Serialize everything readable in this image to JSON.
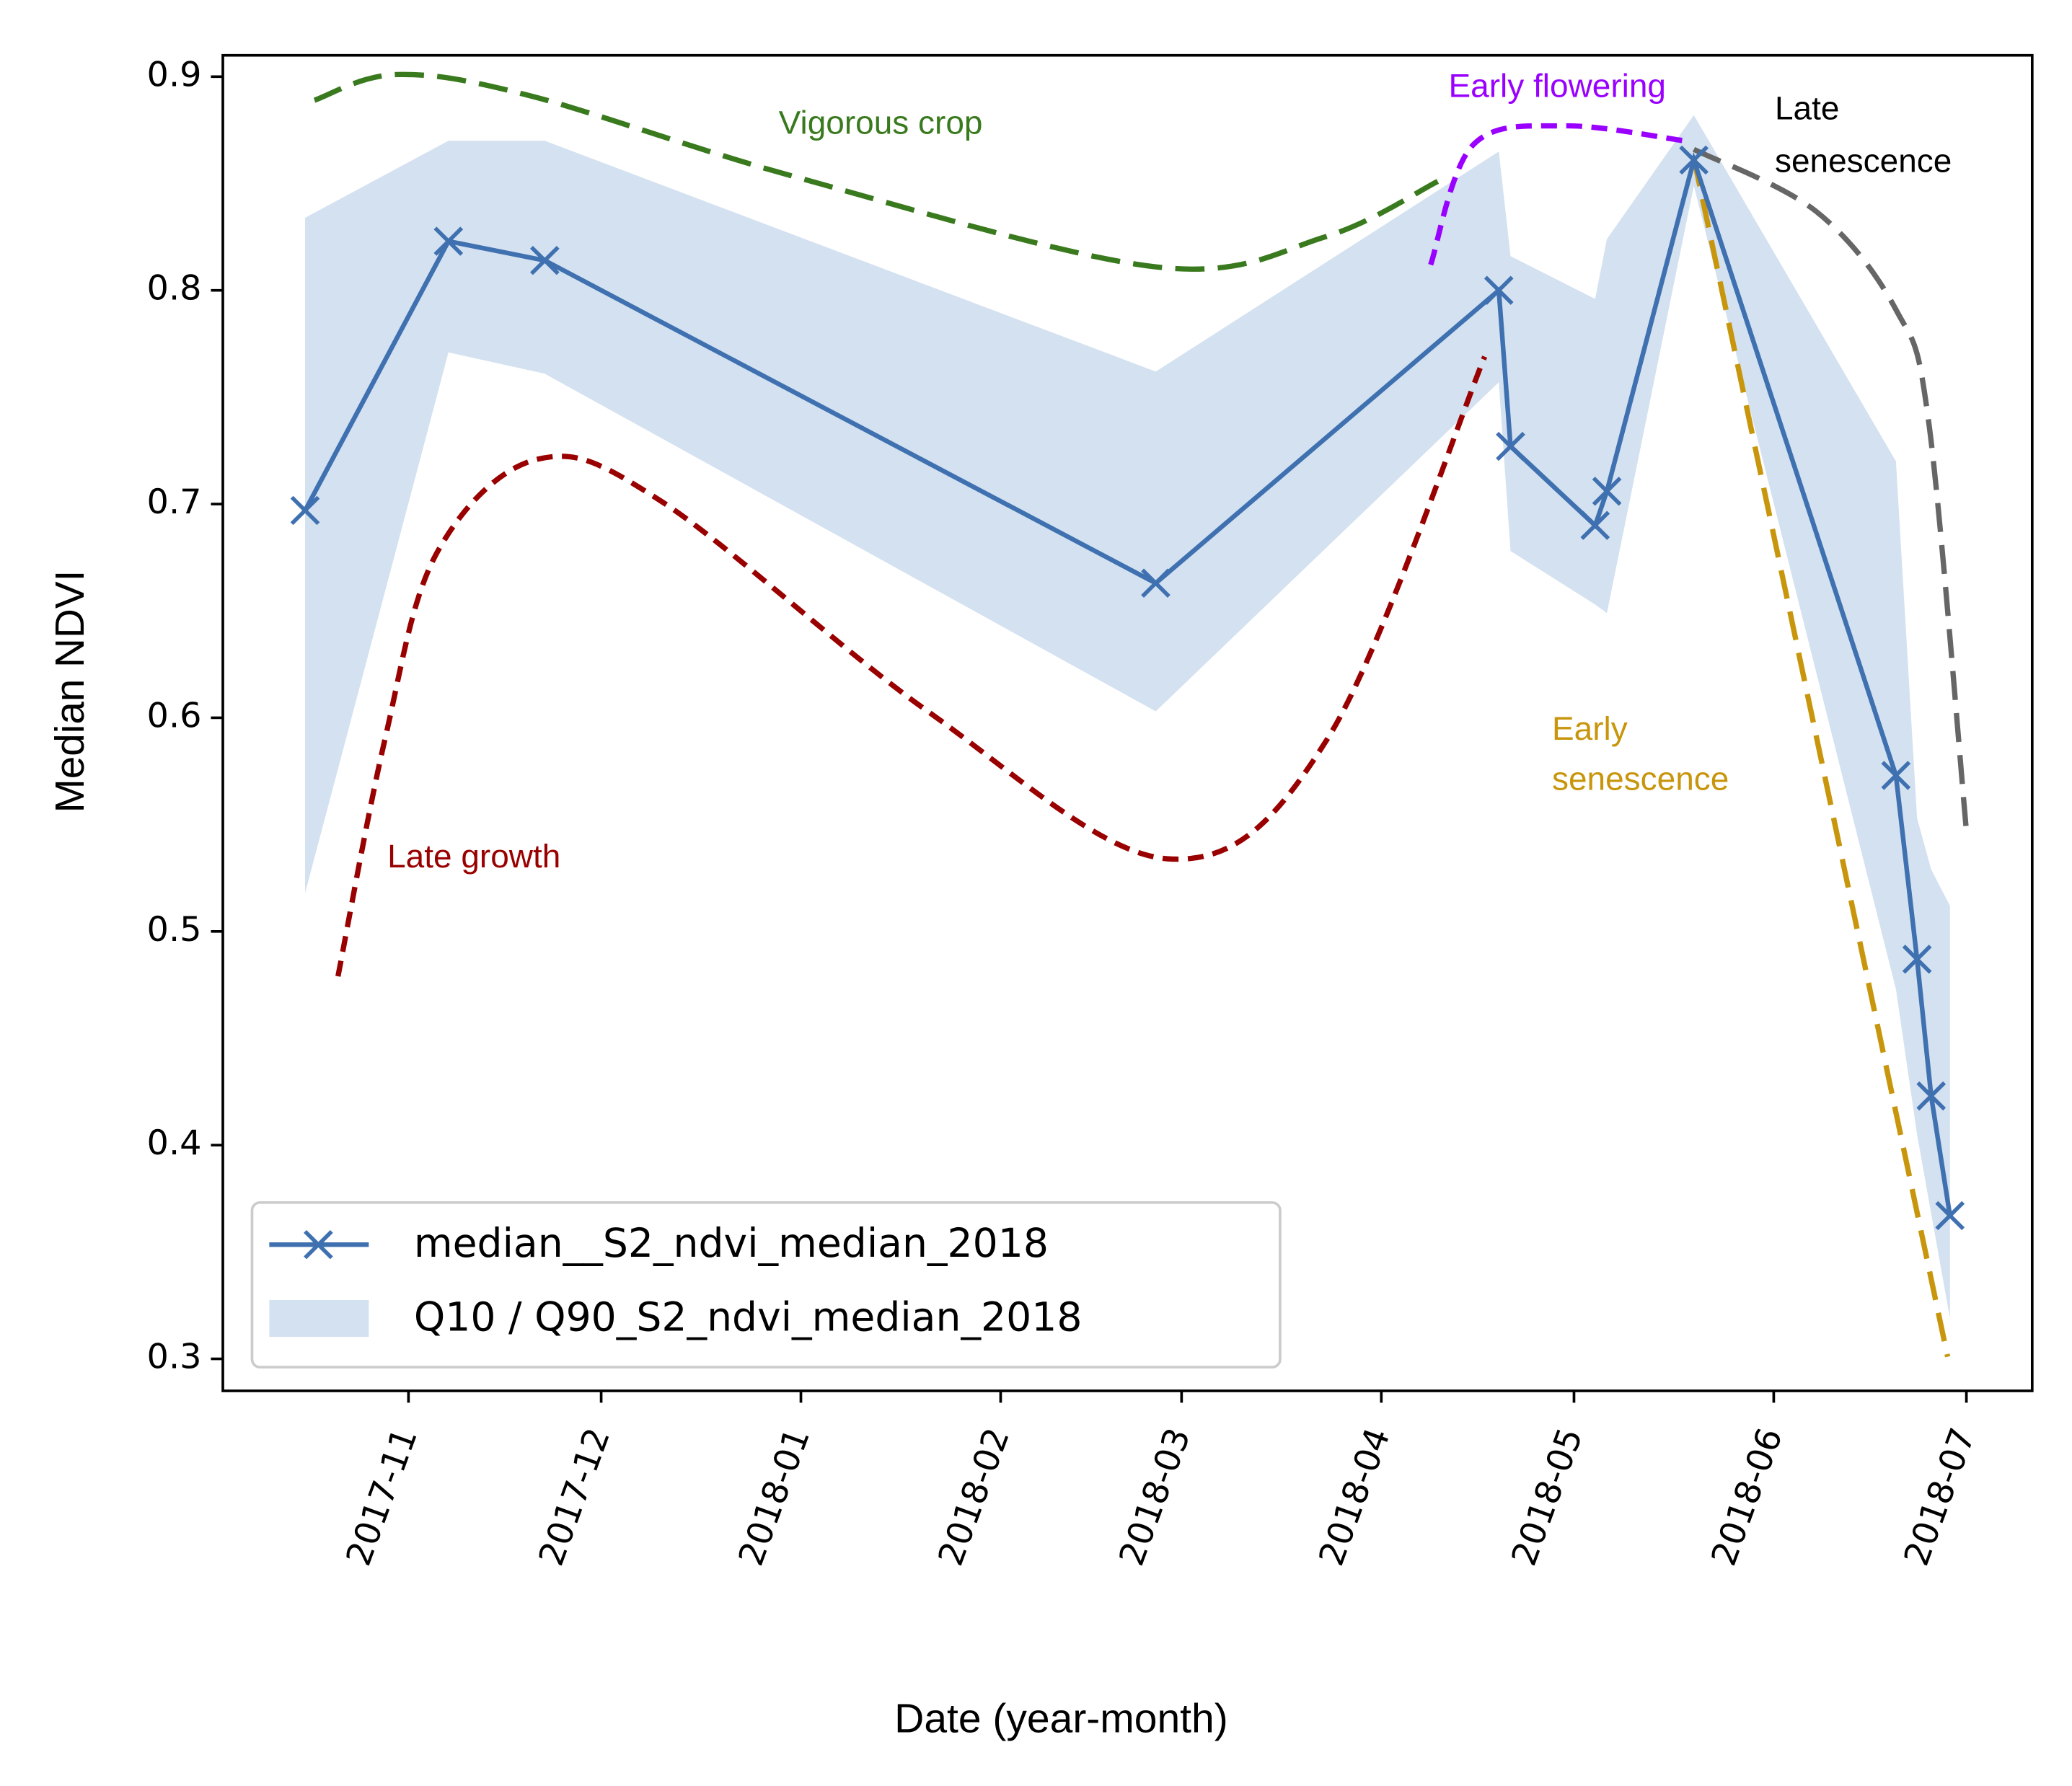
{
  "chart_data": {
    "type": "line",
    "xlabel": "Date (year-month)",
    "ylabel": "Median NDVI",
    "xlim": [
      2017.754,
      2018.524
    ],
    "ylim": [
      0.285,
      0.91
    ],
    "xticks": [
      {
        "value": 2017.833,
        "label": "2017-11"
      },
      {
        "value": 2017.915,
        "label": "2017-12"
      },
      {
        "value": 2018.0,
        "label": "2018-01"
      },
      {
        "value": 2018.085,
        "label": "2018-02"
      },
      {
        "value": 2018.162,
        "label": "2018-03"
      },
      {
        "value": 2018.247,
        "label": "2018-04"
      },
      {
        "value": 2018.329,
        "label": "2018-05"
      },
      {
        "value": 2018.414,
        "label": "2018-06"
      },
      {
        "value": 2018.496,
        "label": "2018-07"
      }
    ],
    "yticks": [
      0.3,
      0.4,
      0.5,
      0.6,
      0.7,
      0.8,
      0.9
    ],
    "legend": "lower left",
    "series": [
      {
        "name": "median__S2_ndvi_median_2018",
        "color": "#3f70b0",
        "marker": "x",
        "x": [
          2017.789,
          2017.85,
          2017.891,
          2018.151,
          2018.297,
          2018.302,
          2018.338,
          2018.343,
          2018.38,
          2018.466,
          2018.475,
          2018.481,
          2018.489
        ],
        "values": [
          0.697,
          0.823,
          0.814,
          0.663,
          0.8,
          0.727,
          0.69,
          0.706,
          0.861,
          0.573,
          0.487,
          0.423,
          0.367
        ]
      }
    ],
    "band": {
      "name": "Q10 / Q90_S2_ndvi_median_2018",
      "color": "#d3e1f0",
      "x": [
        2017.789,
        2017.85,
        2017.891,
        2018.151,
        2018.297,
        2018.302,
        2018.338,
        2018.343,
        2018.38,
        2018.466,
        2018.475,
        2018.481,
        2018.489
      ],
      "upper": [
        0.834,
        0.87,
        0.87,
        0.762,
        0.865,
        0.816,
        0.796,
        0.824,
        0.882,
        0.72,
        0.553,
        0.529,
        0.512
      ],
      "lower": [
        0.518,
        0.771,
        0.761,
        0.603,
        0.757,
        0.678,
        0.653,
        0.649,
        0.849,
        0.473,
        0.405,
        0.368,
        0.319
      ]
    },
    "annotations": [
      {
        "text": [
          "Vigorous crop"
        ],
        "color": "#3a7a1e",
        "dash": "long",
        "x": [
          2017.793,
          2017.828,
          2017.885,
          2017.998,
          2018.151,
          2018.223,
          2018.271
        ],
        "values": [
          0.889,
          0.901,
          0.891,
          0.853,
          0.811,
          0.825,
          0.851
        ]
      },
      {
        "text": [
          "Late growth"
        ],
        "color": "#990000",
        "dash": "short",
        "x": [
          2017.803,
          2017.823,
          2017.845,
          2017.888,
          2017.941,
          2018.054,
          2018.156,
          2018.224,
          2018.291
        ],
        "values": [
          0.479,
          0.59,
          0.677,
          0.721,
          0.701,
          0.603,
          0.534,
          0.59,
          0.769
        ]
      },
      {
        "text": [
          "Early flowering"
        ],
        "color": "#9900ff",
        "dash": "short",
        "x": [
          2018.268,
          2018.286,
          2018.325,
          2018.376
        ],
        "values": [
          0.812,
          0.868,
          0.877,
          0.87
        ]
      },
      {
        "text": [
          "Late",
          "senescence"
        ],
        "color": "#666666",
        "dash": "long",
        "x": [
          2018.38,
          2018.432,
          2018.466,
          2018.48,
          2018.496
        ],
        "values": [
          0.866,
          0.837,
          0.791,
          0.738,
          0.547
        ]
      },
      {
        "text": [
          "Early",
          "senescence"
        ],
        "color": "#c8960c",
        "dash": "long",
        "x": [
          2018.38,
          2018.488
        ],
        "values": [
          0.862,
          0.301
        ]
      }
    ]
  }
}
